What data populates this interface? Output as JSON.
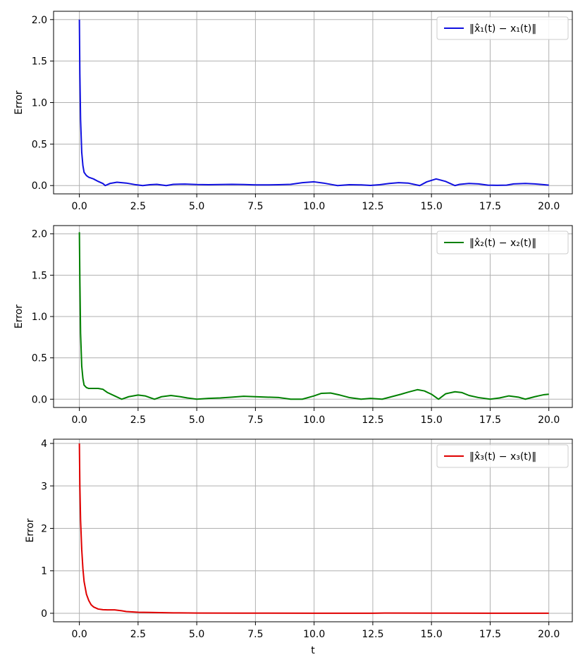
{
  "chart_data": [
    {
      "type": "line",
      "ylabel": "Error",
      "xlabel": "",
      "xlim": [
        -1.1,
        21.0
      ],
      "ylim": [
        -0.1,
        2.1
      ],
      "xticks": [
        "0.0",
        "2.5",
        "5.0",
        "7.5",
        "10.0",
        "12.5",
        "15.0",
        "17.5",
        "20.0"
      ],
      "xtick_values": [
        0,
        2.5,
        5,
        7.5,
        10,
        12.5,
        15,
        17.5,
        20
      ],
      "yticks": [
        "0.0",
        "0.5",
        "1.0",
        "1.5",
        "2.0"
      ],
      "ytick_values": [
        0,
        0.5,
        1.0,
        1.5,
        2.0
      ],
      "grid": true,
      "legend_position": "top-right",
      "series": [
        {
          "name": "‖x̂₁(t) − x₁(t)‖",
          "color": "#1010e0",
          "x": [
            0,
            0.02,
            0.05,
            0.1,
            0.15,
            0.2,
            0.3,
            0.4,
            0.6,
            0.8,
            1.0,
            1.1,
            1.3,
            1.6,
            2.0,
            2.4,
            2.7,
            3.0,
            3.3,
            3.7,
            4.0,
            4.5,
            5.0,
            5.5,
            6.0,
            6.5,
            7.0,
            7.5,
            8.0,
            8.5,
            9.0,
            9.5,
            10.0,
            10.4,
            10.8,
            11.0,
            11.5,
            12.0,
            12.4,
            12.8,
            13.2,
            13.6,
            14.0,
            14.5,
            14.8,
            15.2,
            15.6,
            16.0,
            16.2,
            16.6,
            17.0,
            17.4,
            17.8,
            18.2,
            18.5,
            19.0,
            19.4,
            19.8,
            20.0
          ],
          "y": [
            2.0,
            1.35,
            0.8,
            0.4,
            0.24,
            0.16,
            0.12,
            0.1,
            0.08,
            0.05,
            0.025,
            0.0,
            0.025,
            0.04,
            0.03,
            0.01,
            0.0,
            0.01,
            0.015,
            0.0,
            0.015,
            0.018,
            0.012,
            0.01,
            0.012,
            0.015,
            0.012,
            0.008,
            0.008,
            0.01,
            0.015,
            0.035,
            0.045,
            0.03,
            0.01,
            0.0,
            0.01,
            0.008,
            0.002,
            0.01,
            0.025,
            0.035,
            0.03,
            0.0,
            0.045,
            0.08,
            0.05,
            0.0,
            0.015,
            0.025,
            0.02,
            0.005,
            0.003,
            0.005,
            0.02,
            0.025,
            0.02,
            0.01,
            0.005
          ]
        }
      ]
    },
    {
      "type": "line",
      "ylabel": "Error",
      "xlabel": "",
      "xlim": [
        -1.1,
        21.0
      ],
      "ylim": [
        -0.1,
        2.1
      ],
      "xticks": [
        "0.0",
        "2.5",
        "5.0",
        "7.5",
        "10.0",
        "12.5",
        "15.0",
        "17.5",
        "20.0"
      ],
      "xtick_values": [
        0,
        2.5,
        5,
        7.5,
        10,
        12.5,
        15,
        17.5,
        20
      ],
      "yticks": [
        "0.0",
        "0.5",
        "1.0",
        "1.5",
        "2.0"
      ],
      "ytick_values": [
        0,
        0.5,
        1.0,
        1.5,
        2.0
      ],
      "grid": true,
      "legend_position": "top-right",
      "series": [
        {
          "name": "‖x̂₂(t) − x₂(t)‖",
          "color": "#008000",
          "x": [
            0,
            0.02,
            0.05,
            0.1,
            0.15,
            0.2,
            0.3,
            0.4,
            0.6,
            0.8,
            1.0,
            1.2,
            1.5,
            1.8,
            2.1,
            2.5,
            2.8,
            3.2,
            3.5,
            3.9,
            4.3,
            4.6,
            5.0,
            5.5,
            6.0,
            6.5,
            7.0,
            7.5,
            8.0,
            8.5,
            9.0,
            9.5,
            10.0,
            10.3,
            10.7,
            11.1,
            11.5,
            12.0,
            12.4,
            12.9,
            13.3,
            13.7,
            14.0,
            14.4,
            14.7,
            15.0,
            15.3,
            15.6,
            16.0,
            16.3,
            16.6,
            17.0,
            17.5,
            17.9,
            18.3,
            18.7,
            19.0,
            19.4,
            19.8,
            20.0
          ],
          "y": [
            2.02,
            1.45,
            0.8,
            0.4,
            0.25,
            0.17,
            0.14,
            0.13,
            0.13,
            0.13,
            0.12,
            0.08,
            0.04,
            0.0,
            0.03,
            0.05,
            0.04,
            0.0,
            0.03,
            0.045,
            0.03,
            0.015,
            0.0,
            0.01,
            0.015,
            0.025,
            0.035,
            0.03,
            0.025,
            0.02,
            0.0,
            0.0,
            0.04,
            0.07,
            0.075,
            0.05,
            0.02,
            0.0,
            0.01,
            0.0,
            0.03,
            0.06,
            0.085,
            0.115,
            0.1,
            0.06,
            0.0,
            0.065,
            0.09,
            0.08,
            0.045,
            0.02,
            0.0,
            0.015,
            0.04,
            0.025,
            0.0,
            0.03,
            0.055,
            0.06
          ]
        }
      ]
    },
    {
      "type": "line",
      "ylabel": "Error",
      "xlabel": "t",
      "xlim": [
        -1.1,
        21.0
      ],
      "ylim": [
        -0.2,
        4.1
      ],
      "xticks": [
        "0.0",
        "2.5",
        "5.0",
        "7.5",
        "10.0",
        "12.5",
        "15.0",
        "17.5",
        "20.0"
      ],
      "xtick_values": [
        0,
        2.5,
        5,
        7.5,
        10,
        12.5,
        15,
        17.5,
        20
      ],
      "yticks": [
        "0",
        "1",
        "2",
        "3",
        "4"
      ],
      "ytick_values": [
        0,
        1,
        2,
        3,
        4
      ],
      "grid": true,
      "legend_position": "top-right",
      "series": [
        {
          "name": "‖x̂₃(t) − x₃(t)‖",
          "color": "#e00000",
          "x": [
            0,
            0.02,
            0.05,
            0.1,
            0.15,
            0.2,
            0.3,
            0.4,
            0.5,
            0.6,
            0.8,
            1.0,
            1.2,
            1.5,
            1.8,
            2.0,
            2.5,
            3.0,
            4.0,
            5.0,
            7.0,
            10.0,
            12.5,
            13.0,
            15.0,
            17.5,
            20.0
          ],
          "y": [
            4.0,
            3.0,
            2.2,
            1.5,
            1.05,
            0.75,
            0.45,
            0.3,
            0.2,
            0.15,
            0.1,
            0.085,
            0.08,
            0.08,
            0.06,
            0.04,
            0.025,
            0.02,
            0.01,
            0.005,
            0.003,
            0.002,
            0.002,
            0.006,
            0.003,
            0.002,
            0.002
          ]
        }
      ]
    }
  ]
}
